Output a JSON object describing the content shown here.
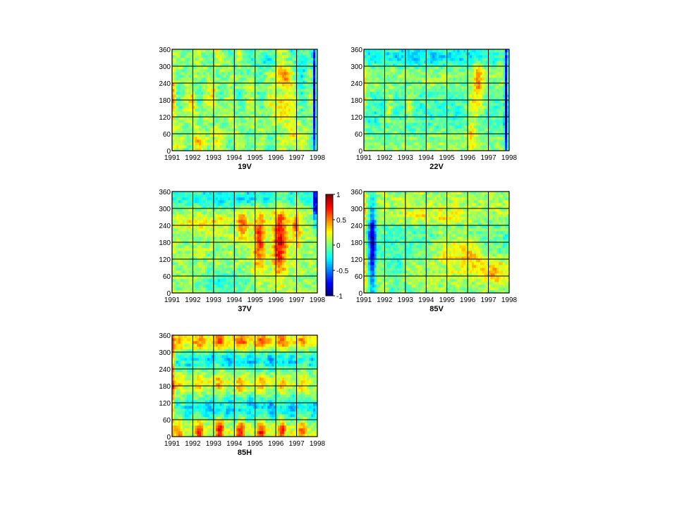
{
  "chart_data": [
    {
      "type": "heatmap",
      "title": "19V",
      "x_tick_labels": [
        "1991",
        "1992",
        "1993",
        "1994",
        "1995",
        "1996",
        "1997",
        "1998"
      ],
      "y_tick_labels": [
        "0",
        "60",
        "120",
        "180",
        "240",
        "300",
        "360"
      ],
      "xlim": [
        1991,
        1998
      ],
      "ylim": [
        0,
        360
      ],
      "grid": true,
      "colormap": "jet",
      "clim": [
        -1,
        1
      ],
      "pattern": "mostly near zero; warm patches near 180 and 240-270 in 1996-1997; strong negative at end of 1997"
    },
    {
      "type": "heatmap",
      "title": "22V",
      "x_tick_labels": [
        "1991",
        "1992",
        "1993",
        "1994",
        "1995",
        "1996",
        "1997",
        "1998"
      ],
      "y_tick_labels": [
        "0",
        "60",
        "120",
        "180",
        "240",
        "300",
        "360"
      ],
      "xlim": [
        1991,
        1998
      ],
      "ylim": [
        0,
        360
      ],
      "grid": true,
      "colormap": "jet",
      "clim": [
        -1,
        1
      ],
      "pattern": "cool band near 300-360; warm streaks near 150-180 and 240 in 1996-1997; strong negative at end of 1997"
    },
    {
      "type": "heatmap",
      "title": "37V",
      "x_tick_labels": [
        "1991",
        "1992",
        "1993",
        "1994",
        "1995",
        "1996",
        "1997",
        "1998"
      ],
      "y_tick_labels": [
        "0",
        "60",
        "120",
        "180",
        "240",
        "300",
        "360"
      ],
      "xlim": [
        1991,
        1998
      ],
      "ylim": [
        0,
        360
      ],
      "grid": true,
      "colormap": "jet",
      "clim": [
        -1,
        1
      ],
      "pattern": "cool band 300-360; warm vertical plumes 90-270 around 1994.5, 1995.2, 1996.2, 1997.0"
    },
    {
      "type": "heatmap",
      "title": "85V",
      "x_tick_labels": [
        "1991",
        "1992",
        "1993",
        "1994",
        "1995",
        "1996",
        "1997",
        "1998"
      ],
      "y_tick_labels": [
        "0",
        "60",
        "120",
        "180",
        "240",
        "300",
        "360"
      ],
      "xlim": [
        1991,
        1998
      ],
      "ylim": [
        0,
        360
      ],
      "grid": true,
      "colormap": "jet",
      "clim": [
        -1,
        1
      ],
      "pattern": "strong negative column in early 1991; mild warm patches 60-180 through 1995-1997"
    },
    {
      "type": "heatmap",
      "title": "85H",
      "x_tick_labels": [
        "1991",
        "1992",
        "1993",
        "1994",
        "1995",
        "1996",
        "1997",
        "1998"
      ],
      "y_tick_labels": [
        "0",
        "60",
        "120",
        "180",
        "240",
        "300",
        "360"
      ],
      "xlim": [
        1991,
        1998
      ],
      "ylim": [
        0,
        360
      ],
      "grid": true,
      "colormap": "jet",
      "clim": [
        -1,
        1
      ],
      "pattern": "strong warm band 300-360 and 0-60 annual peaks; cool bands 60-150 and 240-300; warm streaks near 180"
    }
  ],
  "colorbar": {
    "tick_labels": [
      "1",
      "0.5",
      "0",
      "-0.5",
      "-1"
    ],
    "values": [
      1,
      0.5,
      0,
      -0.5,
      -1
    ]
  }
}
